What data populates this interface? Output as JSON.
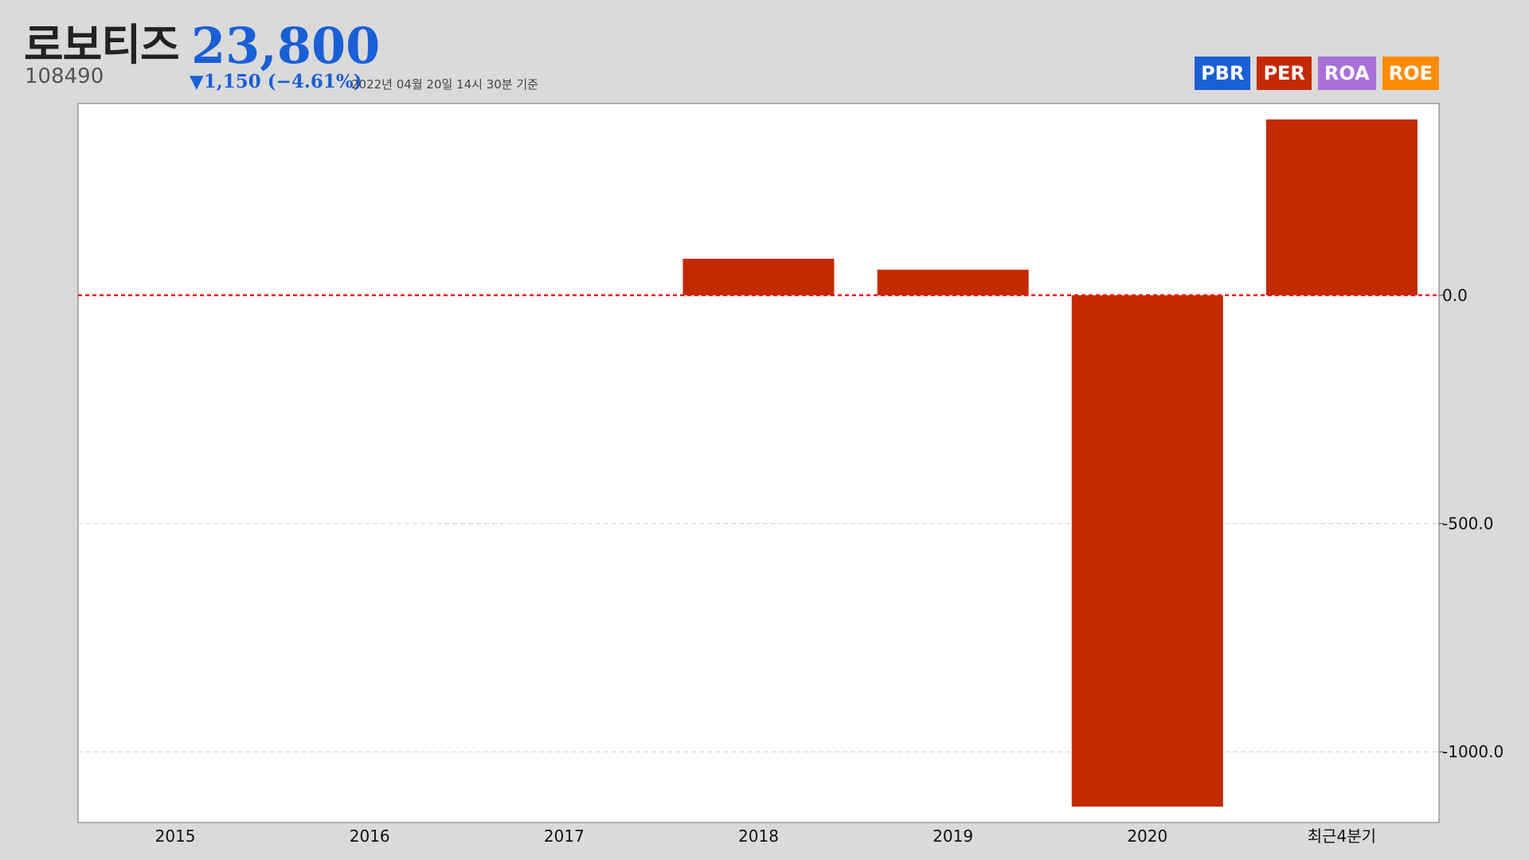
{
  "header": {
    "stock_name": "로보티즈",
    "stock_price": "23,800",
    "stock_code": "108490",
    "price_change": "▼1,150 (−4.61%)",
    "timestamp": "2022년 04월 20일 14시 30분 기준"
  },
  "legend": [
    {
      "label": "PBR",
      "color": "#1a5fd6"
    },
    {
      "label": "PER",
      "color": "#c42a00"
    },
    {
      "label": "ROA",
      "color": "#a870d8"
    },
    {
      "label": "ROE",
      "color": "#ff8c00"
    }
  ],
  "chart_data": {
    "type": "bar",
    "active_series": "PER",
    "bar_color": "#c42a00",
    "categories": [
      "2015",
      "2016",
      "2017",
      "2018",
      "2019",
      "2020",
      "최근4분기"
    ],
    "values": [
      null,
      null,
      null,
      80,
      56,
      -1120,
      385
    ],
    "y_ticks": [
      {
        "value": 0,
        "label": "0.0"
      },
      {
        "value": -500,
        "label": "-500.0"
      },
      {
        "value": -1000,
        "label": "-1000.0"
      }
    ],
    "ylim": [
      -1155,
      420
    ],
    "zero_line_color": "#e8141c",
    "grid": true
  }
}
